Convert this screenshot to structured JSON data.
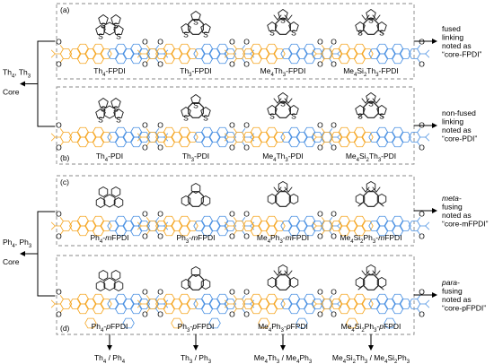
{
  "colors": {
    "orange": "#f5a623",
    "blue": "#4a90e2",
    "black": "#1a1a1a",
    "frame": "#888888"
  },
  "panels": [
    {
      "tag": "(a)",
      "tag_pos": "top",
      "molecules": [
        {
          "label": "Th4-FPDI",
          "core": "th4",
          "linker": "fused"
        },
        {
          "label": "Th3-FPDI",
          "core": "th3",
          "linker": "fused"
        },
        {
          "label": "Me4Th3-FPDI",
          "core": "me4th3",
          "linker": "fused"
        },
        {
          "label": "Me4Si2Th3-FPDI",
          "core": "si",
          "linker": "fused"
        }
      ],
      "note": [
        "fused",
        "linking",
        "noted as",
        "“core-FPDI”"
      ]
    },
    {
      "tag": "(b)",
      "tag_pos": "bottom",
      "molecules": [
        {
          "label": "Th4-PDI",
          "core": "th4",
          "linker": "pdi"
        },
        {
          "label": "Th3-PDI",
          "core": "th3",
          "linker": "pdi"
        },
        {
          "label": "Me4Th3-PDI",
          "core": "me4th3",
          "linker": "pdi"
        },
        {
          "label": "Me4Si2Th3-PDI",
          "core": "si",
          "linker": "pdi"
        }
      ],
      "note": [
        "non-fused",
        "linking",
        "noted as",
        "“core-PDI”"
      ]
    },
    {
      "tag": "(c)",
      "tag_pos": "top",
      "molecules": [
        {
          "label": "Ph4-mFPDI",
          "core": "ph4",
          "linker": "meta"
        },
        {
          "label": "Ph3-mFPDI",
          "core": "ph3",
          "linker": "meta"
        },
        {
          "label": "Me4Ph3-mFPDI",
          "core": "me4ph3",
          "linker": "meta"
        },
        {
          "label": "Me4Si2Ph3-mFPDI",
          "core": "siph",
          "linker": "meta"
        }
      ],
      "note": [
        "meta-",
        "fusing",
        "noted as",
        "“core-mFPDI”"
      ]
    },
    {
      "tag": "(d)",
      "tag_pos": "bottom",
      "molecules": [
        {
          "label": "Ph4-pFPDI",
          "core": "ph4",
          "linker": "para"
        },
        {
          "label": "Ph3-pFPDI",
          "core": "ph3",
          "linker": "para"
        },
        {
          "label": "Me4Ph3-pFPDI",
          "core": "me4ph3",
          "linker": "para"
        },
        {
          "label": "Me4Si2Ph3-pFPDI",
          "core": "siph",
          "linker": "para"
        }
      ],
      "note": [
        "para-",
        "fusing",
        "noted as",
        "“core-pFPDI”"
      ]
    }
  ],
  "groups": [
    {
      "label": [
        "Th4, Th3",
        "Core"
      ]
    },
    {
      "label": [
        "Ph4, Ph3",
        "Core"
      ]
    }
  ],
  "bottom_labels": [
    "Th4 / Ph4",
    "Th3 / Ph3",
    "Me4Th3 / Me4Ph3",
    "Me4Si2Th3 / Me4Si2Ph3"
  ]
}
